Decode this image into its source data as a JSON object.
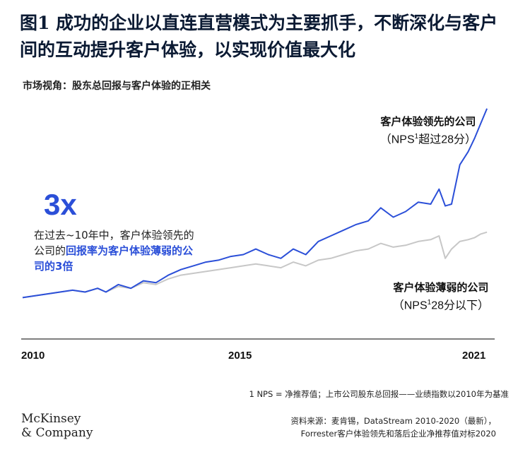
{
  "header": {
    "title": "图1 成功的企业以直连直营模式为主要抓手，不断深化与客户间的互动提升客户体验，以实现价值最大化",
    "subtitle": "市场视角：股东总回报与客户体验的正相关"
  },
  "callout": {
    "big": "3x",
    "text_plain": "在过去~10年中，客户体验领先的公司的",
    "text_highlight": "回报率为客户体验薄弱的公司的3倍"
  },
  "labels": {
    "leader_title": "客户体验领先的公司",
    "leader_sub_a": "（NPS",
    "leader_sup": "1",
    "leader_sub_b": "超过28分）",
    "laggard_title": "客户体验薄弱的公司",
    "laggard_sub_a": "（NPS",
    "laggard_sup": "1",
    "laggard_sub_b": "28分以下）"
  },
  "footnote": "1 NPS = 净推荐值；上市公司股东总回报——业绩指数以2010年为基准",
  "source_line1": "资料来源：麦肯锡，DataStream 2010-2020（最新），",
  "source_line2": "Forrester客户体验领先和落后企业净推荐值对标2020",
  "logo_line1": "McKinsey",
  "logo_line2": "& Company",
  "chart_data": {
    "type": "line",
    "x_ticks": [
      "2010",
      "2015",
      "2021"
    ],
    "xlim": [
      2010,
      2021.2
    ],
    "ylim": [
      0,
      100
    ],
    "colors": {
      "leaders": "#2b4fd8",
      "laggards": "#c7c7c7"
    },
    "series": [
      {
        "name": "客户体验领先的公司",
        "x": [
          2010,
          2010.3,
          2010.6,
          2010.9,
          2011.2,
          2011.5,
          2011.8,
          2012.0,
          2012.3,
          2012.6,
          2012.9,
          2013.2,
          2013.5,
          2013.8,
          2014.1,
          2014.4,
          2014.7,
          2015.0,
          2015.3,
          2015.6,
          2015.9,
          2016.2,
          2016.5,
          2016.8,
          2017.1,
          2017.4,
          2017.7,
          2018.0,
          2018.3,
          2018.6,
          2018.9,
          2019.2,
          2019.5,
          2019.8,
          2020.0,
          2020.15,
          2020.3,
          2020.5,
          2020.7,
          2020.85,
          2021.0,
          2021.15
        ],
        "values": [
          7,
          8,
          9,
          10,
          11,
          10,
          12,
          10,
          14,
          12,
          16,
          15,
          19,
          22,
          24,
          26,
          27,
          29,
          30,
          33,
          30,
          28,
          33,
          30,
          37,
          40,
          43,
          46,
          48,
          55,
          50,
          53,
          58,
          57,
          65,
          56,
          57,
          78,
          85,
          92,
          100,
          108
        ]
      },
      {
        "name": "客户体验薄弱的公司",
        "x": [
          2010,
          2010.3,
          2010.6,
          2010.9,
          2011.2,
          2011.5,
          2011.8,
          2012.0,
          2012.3,
          2012.6,
          2012.9,
          2013.2,
          2013.5,
          2013.8,
          2014.1,
          2014.4,
          2014.7,
          2015.0,
          2015.3,
          2015.6,
          2015.9,
          2016.2,
          2016.5,
          2016.8,
          2017.1,
          2017.4,
          2017.7,
          2018.0,
          2018.3,
          2018.6,
          2018.9,
          2019.2,
          2019.5,
          2019.8,
          2020.0,
          2020.15,
          2020.3,
          2020.5,
          2020.7,
          2020.85,
          2021.0,
          2021.15
        ],
        "values": [
          7,
          8,
          9,
          10,
          11,
          10,
          12,
          10,
          13,
          12,
          15,
          14,
          17,
          19,
          20,
          21,
          22,
          23,
          24,
          25,
          24,
          23,
          26,
          24,
          27,
          28,
          30,
          32,
          33,
          36,
          34,
          35,
          37,
          38,
          40,
          28,
          33,
          37,
          38,
          39,
          41,
          42
        ]
      }
    ]
  }
}
